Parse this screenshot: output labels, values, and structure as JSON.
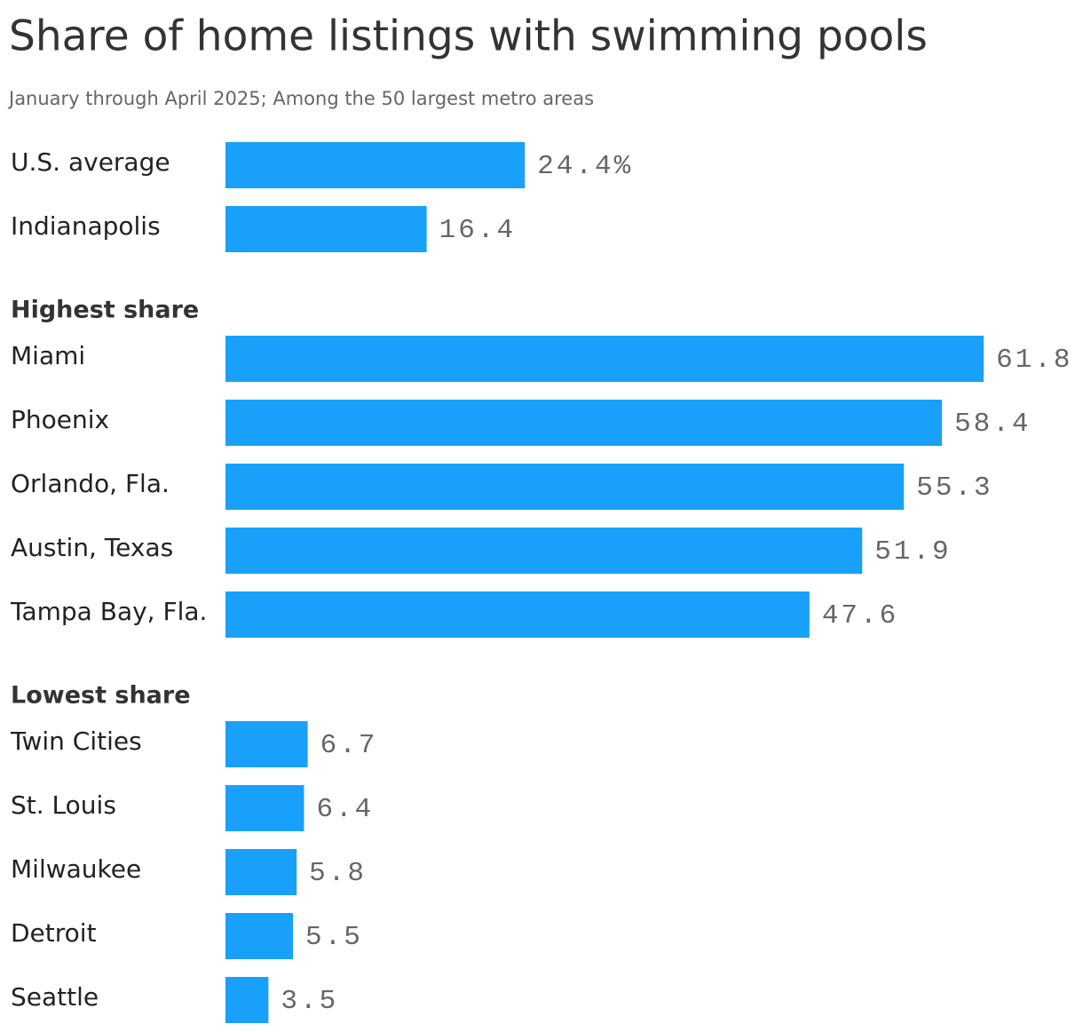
{
  "chart_data": {
    "type": "bar",
    "title": "Share of home listings with swimming pools",
    "subtitle": "January through April 2025; Among the 50 largest metro areas",
    "color": "#18a0fb",
    "groups": [
      {
        "categories": [
          "U.S. average",
          "Indianapolis"
        ],
        "values": [
          24.4,
          16.4
        ],
        "value_labels": [
          "24.4%",
          "16.4"
        ]
      },
      {
        "name": "Highest share",
        "categories": [
          "Miami",
          "Phoenix",
          "Orlando, Fla.",
          "Austin, Texas",
          "Tampa Bay, Fla."
        ],
        "values": [
          61.8,
          58.4,
          55.3,
          51.9,
          47.6
        ]
      },
      {
        "name": "Lowest share",
        "categories": [
          "Twin Cities",
          "St. Louis",
          "Milwaukee",
          "Detroit",
          "Seattle"
        ],
        "values": [
          6.7,
          6.4,
          5.8,
          5.5,
          3.5
        ]
      }
    ]
  }
}
